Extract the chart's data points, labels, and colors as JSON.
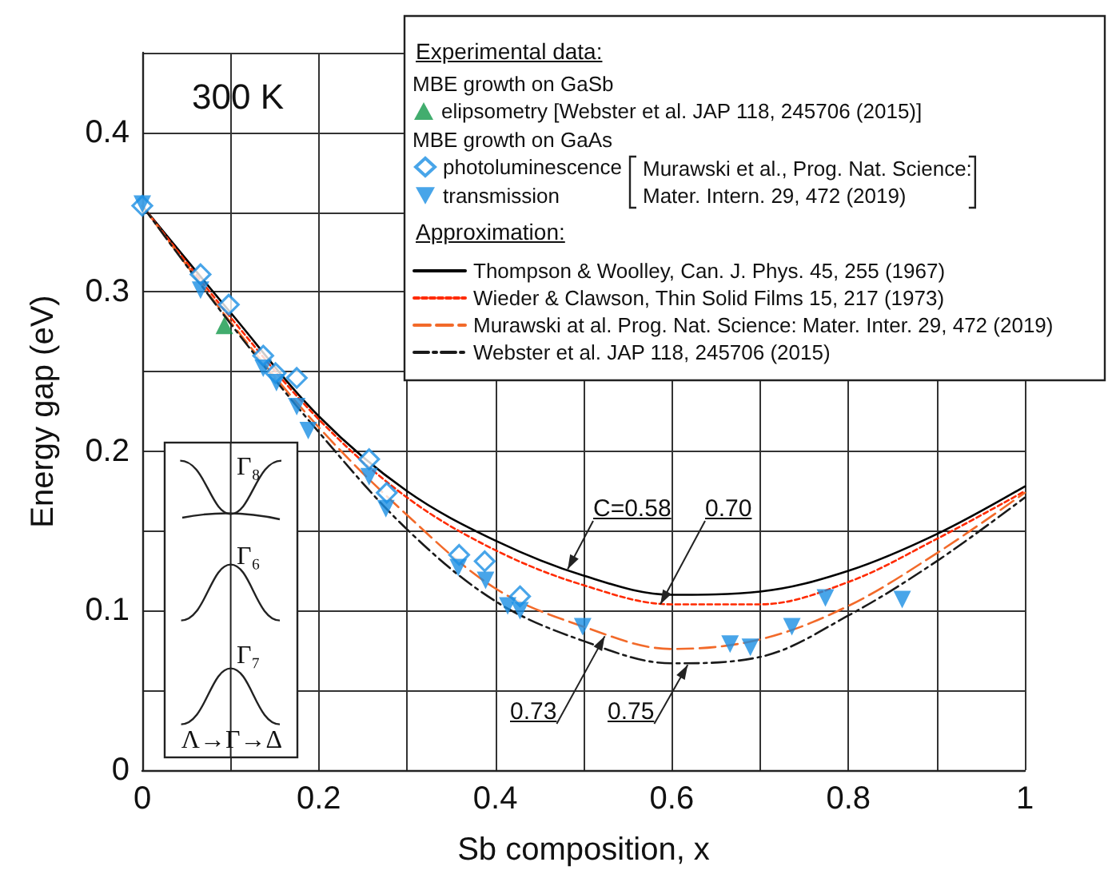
{
  "chart_data": {
    "type": "line",
    "xlabel": "Sb composition, x",
    "ylabel": "Energy gap (eV)",
    "xlim": [
      0,
      1
    ],
    "xticks": [
      0,
      {
        "value": 0.1,
        "label": null
      },
      0.2,
      {
        "value": 0.3,
        "label": null
      },
      0.4,
      {
        "value": 0.5,
        "label": null
      },
      0.6,
      {
        "value": 0.7,
        "label": null
      },
      0.8,
      {
        "value": 0.9,
        "label": null
      },
      1
    ],
    "ylim": [
      0,
      0.45
    ],
    "yticks": [
      0,
      {
        "value": 0.05,
        "label": null
      },
      0.1,
      {
        "value": 0.15,
        "label": null
      },
      0.2,
      {
        "value": 0.25,
        "label": null
      },
      0.3,
      {
        "value": 0.35,
        "label": null
      },
      0.4,
      {
        "value": 0.45,
        "label": null
      }
    ],
    "grid": true,
    "legend": "top right",
    "annotations": [
      "300 K",
      "Experimental data:",
      "MBE growth on GaSb",
      "MBE growth on GaAs",
      "Murawski et al., Prog. Nat. Science:\nMater. Intern. 29, 472 (2019)",
      "Approximation:",
      {
        "text": "C=0.58",
        "x": 0.482,
        "y": 0.126
      },
      {
        "text": "0.70",
        "x": 0.587,
        "y": 0.104
      },
      {
        "text": "0.73",
        "x": 0.524,
        "y": 0.084
      },
      {
        "text": "0.75",
        "x": 0.618,
        "y": 0.066
      },
      "Γ₈",
      "Γ₆",
      "Γ₇",
      "Λ→Γ→Δ"
    ],
    "series": [
      {
        "name": "elipsometry [Webster et al. JAP 118, 245706 (2015)]",
        "type": "scatter",
        "marker": "triangle",
        "color": "#13994a",
        "x": [
          0.093
        ],
        "values": [
          0.279
        ]
      },
      {
        "name": "photoluminescence",
        "type": "scatter",
        "marker": "diamond",
        "color": "#1a8fe3",
        "x": [
          0,
          0.066,
          0.098,
          0.137,
          0.151,
          0.175,
          0.257,
          0.277,
          0.359,
          0.388,
          0.428
        ],
        "values": [
          0.354,
          0.311,
          0.292,
          0.26,
          0.249,
          0.246,
          0.195,
          0.174,
          0.135,
          0.131,
          0.109
        ]
      },
      {
        "name": "transmission",
        "type": "scatter",
        "marker": "triangle-down",
        "color": "#1a8fe3",
        "x": [
          0,
          0.066,
          0.137,
          0.152,
          0.175,
          0.188,
          0.257,
          0.276,
          0.358,
          0.389,
          0.414,
          0.428,
          0.499,
          0.666,
          0.689,
          0.736,
          0.774,
          0.861
        ],
        "values": [
          0.355,
          0.301,
          0.252,
          0.243,
          0.228,
          0.213,
          0.184,
          0.164,
          0.127,
          0.119,
          0.103,
          0.1,
          0.09,
          0.079,
          0.077,
          0.09,
          0.108,
          0.107
        ]
      },
      {
        "name": "Thompson & Woolley, Can. J. Phys. 45, 255 (1967)",
        "marker": "none",
        "line_style": "solid",
        "color": "#000000",
        "x": [
          0,
          0.1,
          0.2,
          0.3,
          0.4,
          0.5,
          0.6,
          0.7,
          0.8,
          0.9,
          1
        ],
        "values": [
          0.354,
          0.287,
          0.222,
          0.175,
          0.144,
          0.122,
          0.11,
          0.112,
          0.125,
          0.148,
          0.178
        ]
      },
      {
        "name": "Wieder & Clawson, Thin Solid Films 15, 217 (1973)",
        "marker": "none",
        "line_style": "dotted",
        "color": "#ff2a00",
        "x": [
          0,
          0.1,
          0.2,
          0.3,
          0.4,
          0.5,
          0.6,
          0.7,
          0.8,
          0.9,
          1
        ],
        "values": [
          0.354,
          0.284,
          0.22,
          0.171,
          0.138,
          0.116,
          0.104,
          0.104,
          0.118,
          0.145,
          0.175
        ]
      },
      {
        "name": "Murawski at al. Prog. Nat. Science: Mater. Inter. 29, 472 (2019)",
        "marker": "none",
        "line_style": "dashed",
        "color": "#f26a2a",
        "x": [
          0,
          0.1,
          0.2,
          0.3,
          0.4,
          0.5,
          0.6,
          0.7,
          0.8,
          0.9,
          1
        ],
        "values": [
          0.354,
          0.281,
          0.215,
          0.16,
          0.114,
          0.09,
          0.076,
          0.082,
          0.103,
          0.136,
          0.174
        ]
      },
      {
        "name": "Webster et al. JAP 118, 245706 (2015)",
        "marker": "none",
        "line_style": "dashdot",
        "color": "#1a1a1a",
        "x": [
          0,
          0.1,
          0.2,
          0.3,
          0.4,
          0.5,
          0.6,
          0.7,
          0.8,
          0.9,
          1
        ],
        "values": [
          0.354,
          0.28,
          0.212,
          0.151,
          0.106,
          0.081,
          0.067,
          0.071,
          0.097,
          0.131,
          0.171
        ]
      }
    ]
  }
}
